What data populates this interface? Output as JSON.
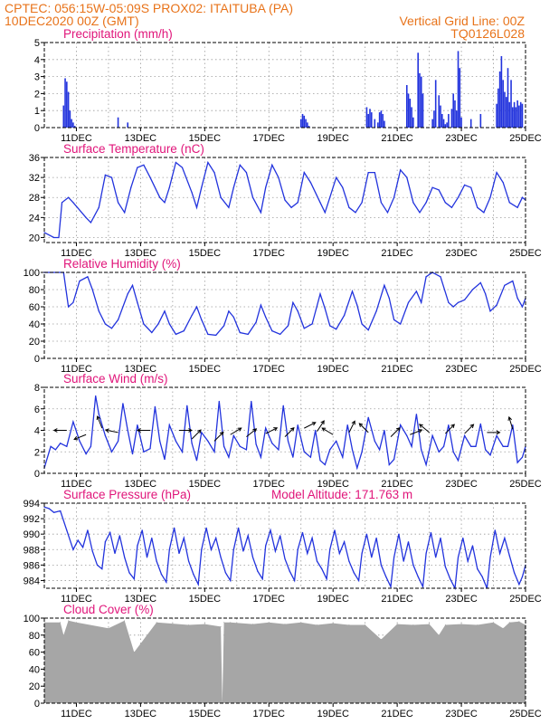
{
  "header": {
    "line1_left": "CPTEC:   056:15W-05:09S   PROX02: ITAITUBA (PA)",
    "line2_left": "10DEC2020 00Z (GMT)",
    "line2_right": "Vertical Grid Line: 00Z",
    "line3_right": "TQ0126L028"
  },
  "colors": {
    "header": "#e8731a",
    "title": "#e0157a",
    "line": "#2233dd",
    "cloud": "#a6a6a6"
  },
  "x_tick_labels": [
    "11DEC",
    "13DEC",
    "15DEC",
    "17DEC",
    "19DEC",
    "21DEC",
    "23DEC",
    "25DEC"
  ],
  "chart_data": [
    {
      "type": "bar",
      "title": "Precipitation (mm/h)",
      "x_days": [
        10,
        25
      ],
      "ylim": [
        0,
        5
      ],
      "yticks": [
        "0",
        "1",
        "2",
        "3",
        "4",
        "5"
      ],
      "x": [
        10.6,
        10.65,
        10.7,
        10.75,
        10.8,
        10.85,
        10.9,
        10.95,
        12.3,
        12.6,
        18.0,
        18.05,
        18.1,
        18.15,
        18.2,
        18.25,
        20.05,
        20.1,
        20.15,
        20.2,
        20.3,
        20.4,
        20.45,
        20.5,
        20.55,
        20.6,
        21.3,
        21.35,
        21.4,
        21.45,
        21.5,
        21.65,
        21.7,
        21.75,
        21.8,
        22.1,
        22.15,
        22.2,
        22.3,
        22.35,
        22.4,
        22.45,
        22.5,
        22.55,
        22.6,
        22.7,
        22.75,
        22.8,
        22.85,
        22.9,
        22.95,
        23.0,
        23.3,
        23.6,
        24.1,
        24.15,
        24.2,
        24.25,
        24.3,
        24.35,
        24.4,
        24.45,
        24.5,
        24.55,
        24.6,
        24.65,
        24.7,
        24.75,
        24.8,
        24.85,
        24.9
      ],
      "values": [
        1.3,
        2.9,
        2.7,
        2.1,
        1.0,
        0.5,
        0.3,
        0.1,
        0.6,
        0.3,
        0.5,
        0.8,
        0.7,
        0.5,
        0.3,
        0.1,
        1.2,
        0.8,
        1.1,
        0.9,
        0.5,
        0.3,
        0.9,
        1.0,
        0.8,
        0.4,
        2.5,
        2.0,
        1.7,
        1.2,
        0.6,
        4.4,
        3.2,
        3.0,
        2.0,
        0.5,
        1.0,
        2.8,
        1.9,
        1.3,
        0.8,
        0.5,
        0.2,
        0.3,
        0.8,
        1.1,
        2.0,
        1.6,
        1.0,
        4.5,
        3.5,
        0.6,
        0.5,
        0.8,
        1.4,
        2.3,
        3.3,
        4.2,
        2.8,
        2.1,
        1.8,
        3.5,
        1.5,
        2.8,
        1.2,
        1.5,
        1.2,
        1.6,
        1.3,
        1.5,
        1.4
      ]
    },
    {
      "type": "line",
      "title": "Surface Temperature (nC)",
      "x_days": [
        10,
        25
      ],
      "ylim": [
        19,
        36
      ],
      "yticks": [
        "20",
        "24",
        "28",
        "32",
        "36"
      ],
      "x": [
        10.0,
        10.3,
        10.45,
        10.55,
        10.75,
        10.9,
        11.3,
        11.45,
        11.7,
        11.9,
        12.1,
        12.3,
        12.5,
        12.7,
        12.9,
        13.1,
        13.3,
        13.6,
        13.75,
        13.9,
        14.1,
        14.3,
        14.6,
        14.75,
        14.9,
        15.1,
        15.3,
        15.5,
        15.75,
        15.9,
        16.1,
        16.3,
        16.5,
        16.75,
        16.9,
        17.1,
        17.3,
        17.5,
        17.7,
        17.9,
        18.1,
        18.3,
        18.6,
        18.75,
        18.9,
        19.1,
        19.3,
        19.5,
        19.7,
        19.9,
        20.1,
        20.3,
        20.5,
        20.7,
        20.9,
        21.1,
        21.3,
        21.5,
        21.7,
        21.9,
        22.1,
        22.3,
        22.5,
        22.7,
        22.9,
        23.1,
        23.3,
        23.5,
        23.7,
        23.9,
        24.1,
        24.3,
        24.5,
        24.75,
        24.9,
        25.0
      ],
      "y": [
        21,
        20,
        20,
        27,
        28,
        27,
        24,
        23,
        26,
        32.5,
        32,
        27,
        25,
        30,
        34,
        34.5,
        32,
        28,
        27,
        30,
        35,
        34,
        29,
        26,
        30,
        35,
        33,
        28,
        26,
        30,
        34.5,
        33,
        28,
        25,
        30,
        34.5,
        32,
        27.5,
        26,
        27,
        33,
        31,
        27,
        25,
        28,
        32,
        30,
        26,
        25,
        27,
        33,
        33,
        27,
        25,
        28,
        33.5,
        32,
        27,
        25,
        27,
        30,
        29.5,
        27,
        26,
        28,
        30.5,
        30,
        26,
        25,
        28,
        33,
        31,
        27,
        26,
        28,
        27.5
      ]
    },
    {
      "type": "line",
      "title": "Relative Humidity (%)",
      "x_days": [
        10,
        25
      ],
      "ylim": [
        0,
        100
      ],
      "yticks": [
        "0",
        "20",
        "40",
        "60",
        "80",
        "100"
      ],
      "x": [
        10.0,
        10.6,
        10.75,
        10.9,
        11.1,
        11.35,
        11.5,
        11.7,
        11.9,
        12.1,
        12.3,
        12.6,
        12.75,
        12.9,
        13.1,
        13.35,
        13.55,
        13.75,
        13.9,
        14.1,
        14.35,
        14.6,
        14.75,
        14.9,
        15.1,
        15.35,
        15.6,
        15.75,
        15.9,
        16.1,
        16.35,
        16.6,
        16.75,
        16.9,
        17.1,
        17.35,
        17.6,
        17.75,
        17.9,
        18.1,
        18.35,
        18.6,
        18.75,
        18.9,
        19.1,
        19.35,
        19.6,
        19.75,
        19.9,
        20.1,
        20.35,
        20.6,
        20.75,
        20.9,
        21.1,
        21.35,
        21.6,
        21.75,
        21.9,
        22.1,
        22.35,
        22.6,
        22.75,
        22.9,
        23.1,
        23.35,
        23.6,
        23.75,
        23.9,
        24.1,
        24.35,
        24.6,
        24.75,
        24.9,
        25.0
      ],
      "y": [
        100,
        100,
        60,
        65,
        90,
        95,
        80,
        55,
        40,
        35,
        45,
        75,
        85,
        65,
        40,
        30,
        40,
        55,
        40,
        28,
        32,
        50,
        60,
        45,
        28,
        27,
        38,
        55,
        48,
        30,
        28,
        42,
        62,
        48,
        32,
        28,
        38,
        65,
        55,
        35,
        40,
        75,
        58,
        38,
        34,
        50,
        78,
        62,
        40,
        33,
        55,
        85,
        70,
        45,
        40,
        65,
        78,
        65,
        95,
        100,
        95,
        65,
        60,
        65,
        68,
        80,
        88,
        75,
        55,
        62,
        85,
        90,
        70,
        60,
        70
      ]
    },
    {
      "type": "line",
      "title": "Surface Wind (m/s)",
      "x_days": [
        10,
        25
      ],
      "ylim": [
        0,
        8
      ],
      "yticks": [
        "0",
        "2",
        "4",
        "6",
        "8"
      ],
      "x": [
        10.0,
        10.2,
        10.35,
        10.5,
        10.7,
        10.9,
        11.1,
        11.3,
        11.45,
        11.6,
        11.7,
        11.9,
        12.1,
        12.3,
        12.45,
        12.6,
        12.75,
        12.9,
        13.1,
        13.3,
        13.45,
        13.6,
        13.75,
        13.9,
        14.1,
        14.3,
        14.45,
        14.6,
        14.75,
        14.9,
        15.1,
        15.3,
        15.45,
        15.6,
        15.75,
        15.9,
        16.1,
        16.3,
        16.45,
        16.6,
        16.75,
        16.9,
        17.1,
        17.3,
        17.45,
        17.6,
        17.75,
        17.9,
        18.1,
        18.3,
        18.45,
        18.6,
        18.75,
        18.9,
        19.1,
        19.3,
        19.45,
        19.6,
        19.75,
        19.9,
        20.1,
        20.3,
        20.45,
        20.6,
        20.75,
        20.9,
        21.1,
        21.3,
        21.45,
        21.6,
        21.75,
        21.9,
        22.1,
        22.3,
        22.45,
        22.6,
        22.75,
        22.9,
        23.1,
        23.3,
        23.45,
        23.6,
        23.75,
        23.9,
        24.1,
        24.3,
        24.45,
        24.6,
        24.75,
        24.9,
        25.0
      ],
      "y": [
        0.5,
        2.5,
        2.2,
        2.8,
        2.5,
        4.8,
        3,
        1.8,
        2.5,
        7.2,
        5.5,
        3.5,
        2,
        3,
        6.5,
        4,
        1.8,
        4.5,
        2,
        2.3,
        6.2,
        3,
        1.3,
        4.5,
        3,
        2,
        6.3,
        2.8,
        1.2,
        3.8,
        3,
        2,
        6.7,
        2.5,
        1.5,
        3.5,
        2.5,
        2.2,
        6.7,
        2.7,
        1.5,
        4.2,
        2.8,
        2.2,
        6.3,
        3,
        1.5,
        4.5,
        2,
        1.5,
        4,
        1.2,
        0.8,
        2.2,
        3,
        1.5,
        4.5,
        2.2,
        0.5,
        2,
        5.2,
        3,
        2.2,
        4,
        0.8,
        1.3,
        4.5,
        3.5,
        2.5,
        5.5,
        2.2,
        0.8,
        3.5,
        2,
        2.5,
        4.5,
        2,
        1.2,
        3.5,
        2.5,
        2.5,
        4.6,
        2.2,
        1.7,
        3.5,
        2.5,
        2.5,
        4.5,
        1,
        1.5,
        2.5
      ]
    },
    {
      "type": "line",
      "title": "Surface Pressure (hPa)",
      "annotation": "Model Altitude: 171.763 m",
      "x_days": [
        10,
        25
      ],
      "ylim": [
        983,
        994
      ],
      "yticks": [
        "984",
        "986",
        "988",
        "990",
        "992",
        "994"
      ],
      "x": [
        10.0,
        10.15,
        10.3,
        10.5,
        10.7,
        10.9,
        11.05,
        11.2,
        11.35,
        11.5,
        11.65,
        11.8,
        11.9,
        12.05,
        12.2,
        12.35,
        12.5,
        12.65,
        12.8,
        12.9,
        13.05,
        13.2,
        13.35,
        13.5,
        13.65,
        13.8,
        13.9,
        14.05,
        14.2,
        14.35,
        14.5,
        14.65,
        14.8,
        14.9,
        15.05,
        15.2,
        15.35,
        15.5,
        15.65,
        15.8,
        15.9,
        16.05,
        16.2,
        16.35,
        16.5,
        16.65,
        16.8,
        16.9,
        17.05,
        17.2,
        17.35,
        17.5,
        17.65,
        17.8,
        17.9,
        18.05,
        18.2,
        18.35,
        18.5,
        18.65,
        18.8,
        18.9,
        19.05,
        19.2,
        19.35,
        19.5,
        19.65,
        19.8,
        19.9,
        20.05,
        20.2,
        20.35,
        20.5,
        20.65,
        20.8,
        20.9,
        21.05,
        21.2,
        21.35,
        21.5,
        21.65,
        21.8,
        21.9,
        22.05,
        22.2,
        22.35,
        22.5,
        22.65,
        22.8,
        22.9,
        23.05,
        23.2,
        23.35,
        23.5,
        23.65,
        23.8,
        23.9,
        24.05,
        24.2,
        24.35,
        24.5,
        24.65,
        24.8,
        24.9,
        25.0
      ],
      "y": [
        993.5,
        993.3,
        992.8,
        993.0,
        990.5,
        988.0,
        989.2,
        988.3,
        990.5,
        987.8,
        986.0,
        985.5,
        989.0,
        990.2,
        987.5,
        989.8,
        987.0,
        985.0,
        984.2,
        988.5,
        990.5,
        987.0,
        989.5,
        986.5,
        984.8,
        983.8,
        988.0,
        990.8,
        987.5,
        989.5,
        986.5,
        984.8,
        983.5,
        988.0,
        990.8,
        988.0,
        989.5,
        987.0,
        985.0,
        984.0,
        988.0,
        990.8,
        987.8,
        989.8,
        987.0,
        985.2,
        984.2,
        988.5,
        990.5,
        987.8,
        989.8,
        986.8,
        985.2,
        984.0,
        988.0,
        990.2,
        987.5,
        989.5,
        986.5,
        985.5,
        984.2,
        988.0,
        990.5,
        987.5,
        989.0,
        986.5,
        985.0,
        984.0,
        987.5,
        990.0,
        987.0,
        989.5,
        986.0,
        984.5,
        983.2,
        987.0,
        990.0,
        986.5,
        989.0,
        986.0,
        984.5,
        983.2,
        987.5,
        990.2,
        987.0,
        989.5,
        985.8,
        984.2,
        983.0,
        987.0,
        989.5,
        986.5,
        988.5,
        985.5,
        984.5,
        983.0,
        987.0,
        990.5,
        987.5,
        989.5,
        987.2,
        985.0,
        983.5,
        984.5,
        986.0
      ]
    },
    {
      "type": "area",
      "title": "Cloud Cover (%)",
      "x_days": [
        10,
        25
      ],
      "ylim": [
        0,
        100
      ],
      "yticks": [
        "0",
        "20",
        "40",
        "60",
        "80",
        "100"
      ],
      "x": [
        10.0,
        10.5,
        10.6,
        10.75,
        11.0,
        12.0,
        12.5,
        12.8,
        13.5,
        14.5,
        15.0,
        15.5,
        15.55,
        15.6,
        15.8,
        16.5,
        17.0,
        17.5,
        18.0,
        18.5,
        19.0,
        19.5,
        20.0,
        20.5,
        21.0,
        21.5,
        22.0,
        22.3,
        22.5,
        23.0,
        23.5,
        24.0,
        24.3,
        24.5,
        24.8,
        25.0
      ],
      "y": [
        95,
        95,
        80,
        97,
        95,
        88,
        97,
        60,
        95,
        92,
        93,
        90,
        0,
        95,
        95,
        93,
        95,
        93,
        95,
        92,
        94,
        92,
        92,
        75,
        93,
        92,
        93,
        80,
        92,
        93,
        92,
        95,
        88,
        95,
        96,
        92
      ]
    }
  ]
}
